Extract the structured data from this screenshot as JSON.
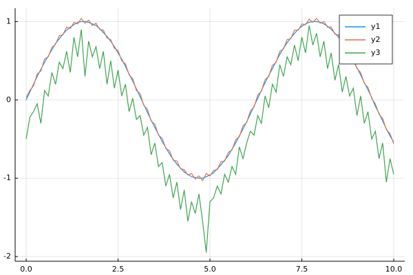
{
  "chart_data": {
    "type": "line",
    "x": [
      0,
      0.1,
      0.2,
      0.3,
      0.4,
      0.5,
      0.6,
      0.7,
      0.8,
      0.9,
      1,
      1.1,
      1.2,
      1.3,
      1.4,
      1.5,
      1.6,
      1.7,
      1.8,
      1.9,
      2,
      2.1,
      2.2,
      2.3,
      2.4,
      2.5,
      2.6,
      2.7,
      2.8,
      2.9,
      3,
      3.1,
      3.2,
      3.3,
      3.4,
      3.5,
      3.6,
      3.7,
      3.8,
      3.9,
      4,
      4.1,
      4.2,
      4.3,
      4.4,
      4.5,
      4.6,
      4.7,
      4.8,
      4.9,
      5,
      5.1,
      5.2,
      5.3,
      5.4,
      5.5,
      5.6,
      5.7,
      5.8,
      5.9,
      6,
      6.1,
      6.2,
      6.3,
      6.4,
      6.5,
      6.6,
      6.7,
      6.8,
      6.9,
      7,
      7.1,
      7.2,
      7.3,
      7.4,
      7.5,
      7.6,
      7.7,
      7.8,
      7.9,
      8,
      8.1,
      8.2,
      8.3,
      8.4,
      8.5,
      8.6,
      8.7,
      8.8,
      8.9,
      9,
      9.1,
      9.2,
      9.3,
      9.4,
      9.5,
      9.6,
      9.7,
      9.8,
      9.9,
      10
    ],
    "series": [
      {
        "name": "y1",
        "color": "#009af9",
        "values": [
          0,
          0.1,
          0.2,
          0.3,
          0.39,
          0.48,
          0.56,
          0.64,
          0.72,
          0.78,
          0.84,
          0.89,
          0.93,
          0.96,
          0.99,
          1.0,
          1.0,
          0.99,
          0.97,
          0.95,
          0.91,
          0.86,
          0.81,
          0.75,
          0.68,
          0.6,
          0.52,
          0.43,
          0.33,
          0.24,
          0.14,
          0.04,
          -0.06,
          -0.16,
          -0.26,
          -0.35,
          -0.44,
          -0.53,
          -0.61,
          -0.69,
          -0.76,
          -0.82,
          -0.87,
          -0.92,
          -0.95,
          -0.98,
          -0.99,
          -1.0,
          -1.0,
          -0.98,
          -0.96,
          -0.93,
          -0.88,
          -0.83,
          -0.77,
          -0.71,
          -0.63,
          -0.55,
          -0.46,
          -0.37,
          -0.28,
          -0.18,
          -0.08,
          0.02,
          0.12,
          0.22,
          0.31,
          0.4,
          0.49,
          0.58,
          0.66,
          0.73,
          0.79,
          0.85,
          0.9,
          0.94,
          0.97,
          0.99,
          1.0,
          1.0,
          0.99,
          0.97,
          0.94,
          0.9,
          0.85,
          0.8,
          0.73,
          0.66,
          0.58,
          0.5,
          0.41,
          0.32,
          0.22,
          0.13,
          0.03,
          -0.08,
          -0.17,
          -0.27,
          -0.37,
          -0.46,
          -0.54
        ]
      },
      {
        "name": "y2",
        "color": "#e26f46",
        "values": [
          0.03,
          0.12,
          0.18,
          0.33,
          0.37,
          0.52,
          0.55,
          0.67,
          0.71,
          0.82,
          0.83,
          0.93,
          0.91,
          0.99,
          0.97,
          1.04,
          0.98,
          1.02,
          0.95,
          0.98,
          0.9,
          0.89,
          0.79,
          0.77,
          0.66,
          0.63,
          0.5,
          0.46,
          0.32,
          0.27,
          0.12,
          0.08,
          -0.07,
          -0.12,
          -0.27,
          -0.31,
          -0.45,
          -0.49,
          -0.62,
          -0.65,
          -0.77,
          -0.78,
          -0.88,
          -0.89,
          -0.96,
          -0.94,
          -1.01,
          -0.97,
          -1.03,
          -0.94,
          -0.97,
          -0.9,
          -0.89,
          -0.79,
          -0.78,
          -0.67,
          -0.64,
          -0.51,
          -0.47,
          -0.33,
          -0.29,
          -0.14,
          -0.09,
          0.06,
          0.11,
          0.26,
          0.3,
          0.44,
          0.48,
          0.62,
          0.65,
          0.77,
          0.78,
          0.89,
          0.89,
          0.97,
          0.96,
          1.03,
          0.99,
          1.04,
          0.98,
          1.0,
          0.93,
          0.93,
          0.84,
          0.83,
          0.72,
          0.69,
          0.57,
          0.53,
          0.4,
          0.35,
          0.21,
          0.16,
          0.02,
          -0.05,
          -0.18,
          -0.24,
          -0.38,
          -0.43,
          -0.56
        ]
      },
      {
        "name": "y3",
        "color": "#3da44d",
        "values": [
          -0.5,
          -0.22,
          -0.15,
          -0.05,
          -0.3,
          0.12,
          0.05,
          0.35,
          0.2,
          0.48,
          0.4,
          0.62,
          0.35,
          0.8,
          0.55,
          0.9,
          0.3,
          0.75,
          0.55,
          0.68,
          0.4,
          0.62,
          0.2,
          0.5,
          0.15,
          0.38,
          0.05,
          0.2,
          -0.15,
          0.02,
          -0.25,
          -0.2,
          -0.45,
          -0.35,
          -0.7,
          -0.55,
          -0.85,
          -0.8,
          -1.1,
          -0.95,
          -1.25,
          -1.05,
          -1.4,
          -1.15,
          -1.55,
          -1.3,
          -1.45,
          -1.2,
          -1.55,
          -1.95,
          -1.3,
          -1.25,
          -1.1,
          -1.2,
          -0.95,
          -1.05,
          -0.85,
          -0.95,
          -0.6,
          -0.75,
          -0.55,
          -0.4,
          -0.45,
          -0.2,
          -0.3,
          0.05,
          -0.1,
          0.2,
          0.1,
          0.45,
          0.3,
          0.55,
          0.45,
          0.7,
          0.5,
          0.8,
          0.6,
          0.95,
          0.7,
          0.85,
          0.55,
          0.75,
          0.4,
          0.6,
          0.25,
          0.45,
          0.1,
          0.3,
          0.05,
          0.15,
          -0.2,
          0.05,
          -0.3,
          -0.15,
          -0.5,
          -0.4,
          -0.75,
          -0.55,
          -1.05,
          -0.75,
          -0.95
        ]
      }
    ],
    "xlim": [
      -0.3,
      10.3
    ],
    "ylim": [
      -2.06,
      1.17
    ],
    "xticks": [
      {
        "value": 0,
        "label": "0.0"
      },
      {
        "value": 2.5,
        "label": "2.5"
      },
      {
        "value": 5,
        "label": "5.0"
      },
      {
        "value": 7.5,
        "label": "7.5"
      },
      {
        "value": 10,
        "label": "10.0"
      }
    ],
    "yticks": [
      -2,
      -1,
      0,
      1
    ],
    "grid": true,
    "legend": "top-right"
  }
}
